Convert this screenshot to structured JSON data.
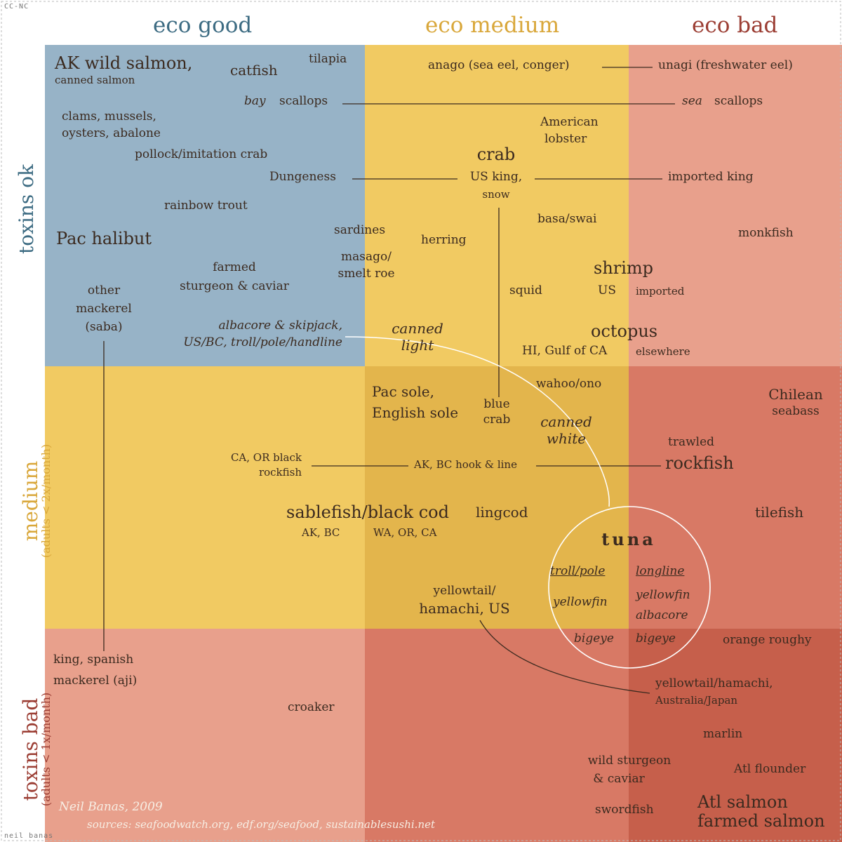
{
  "columns": [
    "eco good",
    "eco medium",
    "eco bad"
  ],
  "rows": [
    {
      "label": "toxins ok",
      "sub": ""
    },
    {
      "label": "medium",
      "sub": "(adults < 2x/month)"
    },
    {
      "label": "toxins bad",
      "sub": "(adults < 1x/month)"
    }
  ],
  "colors": {
    "blue": "#97b3c7",
    "yellow": "#f1ca62",
    "yellow_dark": "#e3b54c",
    "pink": "#e8a08c",
    "red": "#d87965",
    "red_dark": "#c65f4b",
    "col_good": "#3c6b82",
    "col_medium": "#d9a73a",
    "col_bad": "#9b3d33"
  },
  "items": {
    "ak_salmon": "AK wild salmon,",
    "canned_salmon": "canned salmon",
    "catfish": "catfish",
    "tilapia": "tilapia",
    "anago": "anago (sea eel, conger)",
    "unagi": "unagi (freshwater eel)",
    "bay": "bay",
    "scallops": "scallops",
    "sea": "sea",
    "clams_1": "clams, mussels,",
    "clams_2": "oysters, abalone",
    "american_lobster_1": "American",
    "american_lobster_2": "lobster",
    "pollock": "pollock/imitation crab",
    "crab": "crab",
    "dungeness": "Dungeness",
    "us_king": "US king,",
    "snow": "snow",
    "imported_king": "imported king",
    "rainbow_trout": "rainbow trout",
    "basa": "basa/swai",
    "sardines": "sardines",
    "herring": "herring",
    "pac_halibut": "Pac halibut",
    "monkfish": "monkfish",
    "masago_1": "masago/",
    "masago_2": "smelt roe",
    "farmed_1": "farmed",
    "farmed_2": "sturgeon & caviar",
    "shrimp": "shrimp",
    "shrimp_us": "US",
    "shrimp_imported": "imported",
    "squid": "squid",
    "other_mackerel_1": "other",
    "other_mackerel_2": "mackerel",
    "other_mackerel_3": "(saba)",
    "albacore_1": "albacore & skipjack,",
    "albacore_2": "US/BC, troll/pole/handline",
    "canned_light_1": "canned",
    "canned_light_2": "light",
    "octopus": "octopus",
    "octopus_hi": "HI, Gulf of CA",
    "octopus_else": "elsewhere",
    "pac_sole_1": "Pac sole,",
    "pac_sole_2": "English sole",
    "blue_crab_1": "blue",
    "blue_crab_2": "crab",
    "wahoo": "wahoo/ono",
    "chilean_1": "Chilean",
    "chilean_2": "seabass",
    "canned_white_1": "canned",
    "canned_white_2": "white",
    "ca_or_1": "CA, OR black",
    "ca_or_2": "rockfish",
    "ak_bc_hook": "AK, BC hook & line",
    "trawled": "trawled",
    "rockfish": "rockfish",
    "sablefish": "sablefish/black cod",
    "sable_ak": "AK, BC",
    "sable_wa": "WA, OR, CA",
    "lingcod": "lingcod",
    "tilefish": "tilefish",
    "tuna": "tuna",
    "troll_pole": "troll/pole",
    "longline": "longline",
    "yellowfin_1": "yellowfin",
    "yellowfin_2": "yellowfin",
    "albacore_tuna": "albacore",
    "bigeye_1": "bigeye",
    "bigeye_2": "bigeye",
    "yellowtail_us_1": "yellowtail/",
    "yellowtail_us_2": "hamachi, US",
    "orange_roughy": "orange roughy",
    "king_mackerel_1": "king, spanish",
    "king_mackerel_2": "mackerel (aji)",
    "yellowtail_au_1": "yellowtail/hamachi,",
    "yellowtail_au_2": "Australia/Japan",
    "croaker": "croaker",
    "marlin": "marlin",
    "wild_sturgeon_1": "wild sturgeon",
    "wild_sturgeon_2": "& caviar",
    "atl_flounder": "Atl flounder",
    "swordfish": "swordfish",
    "atl_salmon_1": "Atl salmon",
    "atl_salmon_2": "farmed salmon"
  },
  "credit": {
    "author": "Neil Banas, 2009",
    "sources": "sources: seafoodwatch.org, edf.org/seafood, sustainablesushi.net"
  },
  "watermark_top": "CC-NC",
  "watermark_bottom": "neil banas"
}
